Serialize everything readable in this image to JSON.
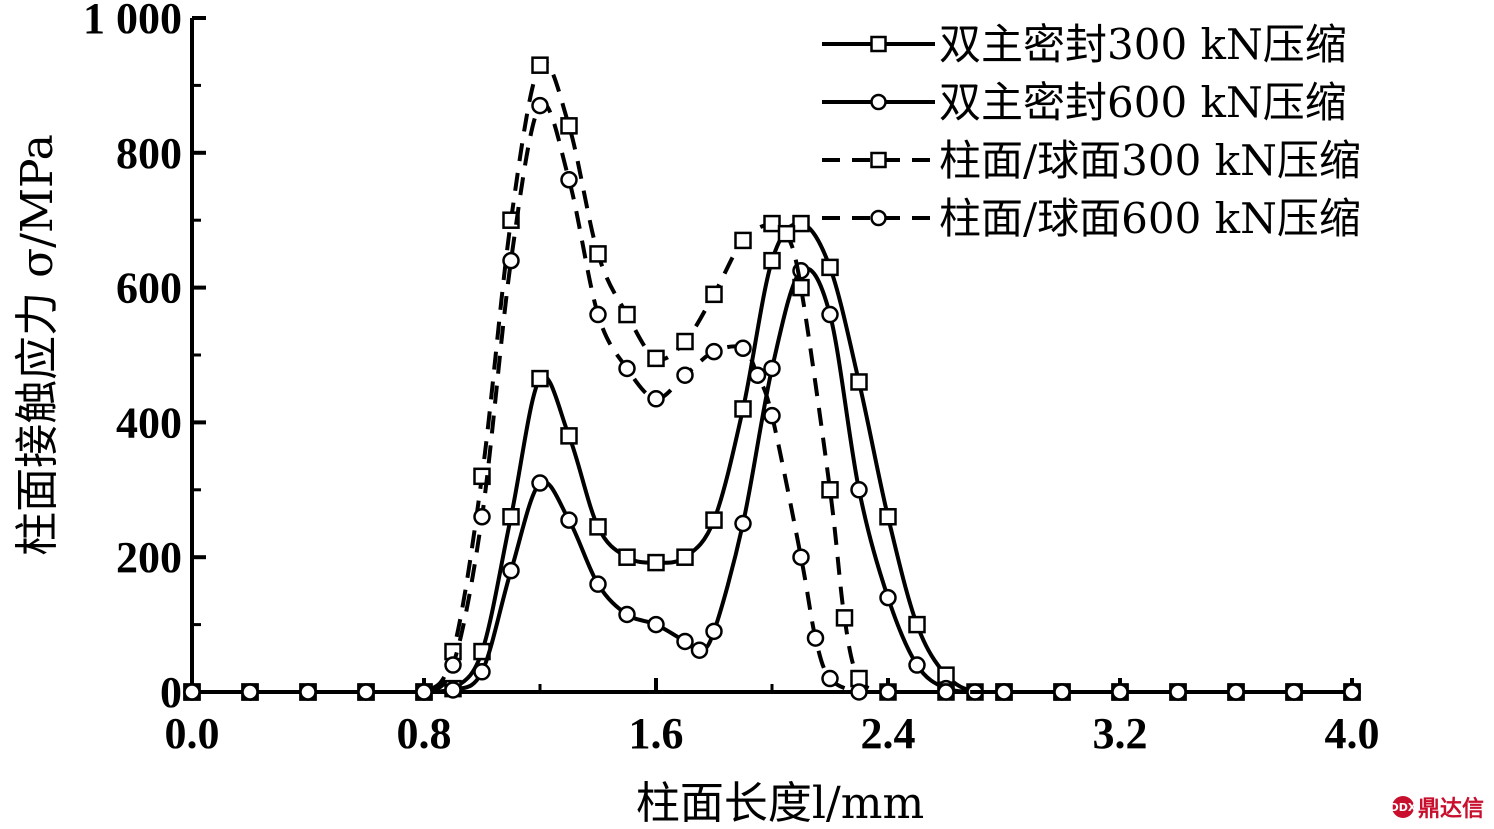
{
  "chart_data": {
    "type": "line",
    "title": "",
    "xlabel": "柱面长度l/mm",
    "ylabel": "柱面接触应力 σ/MPa",
    "xlim": [
      0.0,
      4.0
    ],
    "ylim": [
      0,
      1000
    ],
    "xticks": [
      "0.0",
      "0.8",
      "1.6",
      "2.4",
      "3.2",
      "4.0"
    ],
    "yticks": [
      "0",
      "200",
      "400",
      "600",
      "800",
      "1 000"
    ],
    "legend_position": "top-right",
    "grid": false,
    "series": [
      {
        "name": "双主密封300 kN压缩",
        "line_style": "solid",
        "marker": "square",
        "color": "#000000",
        "x": [
          0.0,
          0.2,
          0.4,
          0.6,
          0.8,
          0.9,
          1.0,
          1.1,
          1.2,
          1.3,
          1.4,
          1.5,
          1.6,
          1.7,
          1.8,
          1.9,
          2.0,
          2.1,
          2.2,
          2.3,
          2.4,
          2.5,
          2.6,
          2.7,
          2.8,
          3.0,
          3.2,
          3.4,
          3.6,
          3.8,
          4.0
        ],
        "y": [
          0,
          0,
          0,
          0,
          0,
          5,
          60,
          260,
          465,
          380,
          245,
          200,
          192,
          200,
          255,
          420,
          640,
          695,
          630,
          460,
          260,
          100,
          25,
          0,
          0,
          0,
          0,
          0,
          0,
          0,
          0
        ]
      },
      {
        "name": "双主密封600 kN压缩",
        "line_style": "solid",
        "marker": "circle",
        "color": "#000000",
        "x": [
          0.0,
          0.2,
          0.4,
          0.6,
          0.8,
          0.9,
          1.0,
          1.1,
          1.2,
          1.3,
          1.4,
          1.5,
          1.6,
          1.7,
          1.75,
          1.8,
          1.9,
          2.0,
          2.1,
          2.2,
          2.3,
          2.4,
          2.5,
          2.6,
          2.7,
          2.8,
          3.0,
          3.2,
          3.4,
          3.6,
          3.8,
          4.0
        ],
        "y": [
          0,
          0,
          0,
          0,
          0,
          3,
          30,
          180,
          310,
          255,
          160,
          115,
          100,
          75,
          62,
          90,
          250,
          480,
          625,
          560,
          300,
          140,
          40,
          5,
          0,
          0,
          0,
          0,
          0,
          0,
          0,
          0
        ]
      },
      {
        "name": "柱面/球面300 kN压缩",
        "line_style": "dashed",
        "marker": "square",
        "color": "#000000",
        "x": [
          0.0,
          0.2,
          0.4,
          0.6,
          0.8,
          0.9,
          1.0,
          1.1,
          1.2,
          1.3,
          1.4,
          1.5,
          1.6,
          1.7,
          1.8,
          1.9,
          2.0,
          2.05,
          2.1,
          2.2,
          2.25,
          2.3,
          2.4,
          2.6,
          2.8,
          3.0,
          3.2,
          3.4,
          3.6,
          3.8,
          4.0
        ],
        "y": [
          0,
          0,
          0,
          0,
          0,
          60,
          320,
          700,
          930,
          840,
          650,
          560,
          495,
          520,
          590,
          670,
          695,
          680,
          600,
          300,
          110,
          20,
          0,
          0,
          0,
          0,
          0,
          0,
          0,
          0,
          0
        ]
      },
      {
        "name": "柱面/球面600 kN压缩",
        "line_style": "dashed",
        "marker": "circle",
        "color": "#000000",
        "x": [
          0.0,
          0.2,
          0.4,
          0.6,
          0.8,
          0.9,
          1.0,
          1.1,
          1.2,
          1.3,
          1.4,
          1.5,
          1.6,
          1.7,
          1.8,
          1.9,
          1.95,
          2.0,
          2.1,
          2.15,
          2.2,
          2.3,
          2.4,
          2.6,
          2.8,
          3.0,
          3.2,
          3.4,
          3.6,
          3.8,
          4.0
        ],
        "y": [
          0,
          0,
          0,
          0,
          0,
          40,
          260,
          640,
          870,
          760,
          560,
          480,
          435,
          470,
          505,
          510,
          470,
          410,
          200,
          80,
          20,
          0,
          0,
          0,
          0,
          0,
          0,
          0,
          0,
          0,
          0
        ]
      }
    ]
  },
  "watermark": {
    "text": "鼎达信",
    "logo_glyph": "DDX"
  }
}
